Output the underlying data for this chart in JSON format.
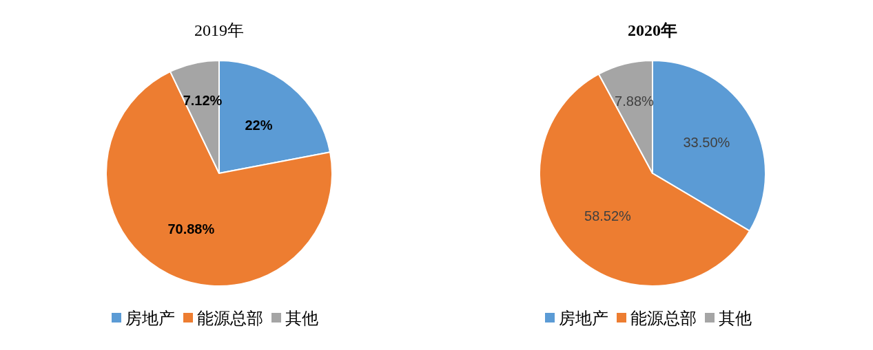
{
  "chart_data": [
    {
      "type": "pie",
      "title": "2019年",
      "categories": [
        "房地产",
        "能源总部",
        "其他"
      ],
      "values": [
        22,
        70.88,
        7.12
      ],
      "value_labels": [
        "22%",
        "70.88%",
        "7.12%"
      ],
      "colors": [
        "#5b9bd5",
        "#ed7d31",
        "#a5a5a5"
      ],
      "legend": "bottom"
    },
    {
      "type": "pie",
      "title": "2020年",
      "categories": [
        "房地产",
        "能源总部",
        "其他"
      ],
      "values": [
        33.5,
        58.52,
        7.88
      ],
      "value_labels": [
        "33.50%",
        "58.52%",
        "7.88%"
      ],
      "colors": [
        "#5b9bd5",
        "#ed7d31",
        "#a5a5a5"
      ],
      "legend": "bottom"
    }
  ]
}
